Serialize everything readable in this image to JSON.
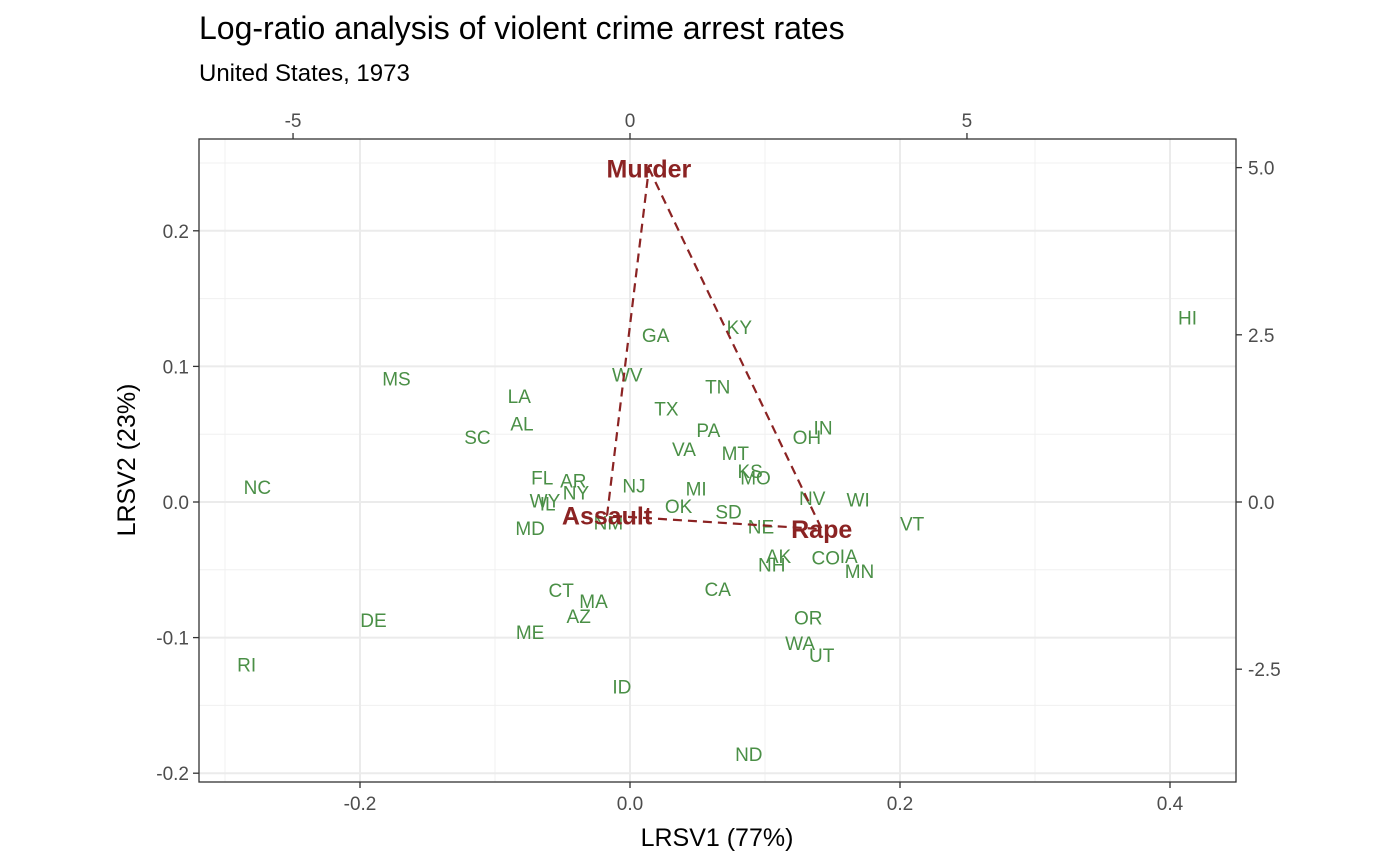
{
  "chart_data": {
    "type": "scatter",
    "title": "Log-ratio analysis of violent crime arrest rates",
    "subtitle": "United States, 1973",
    "xlabel": "LRSV1 (77%)",
    "ylabel": "LRSV2 (23%)",
    "xlim": [
      -0.3,
      0.45
    ],
    "ylim": [
      -0.21,
      0.27
    ],
    "x_ticks": [
      {
        "value": -0.2,
        "label": "-0.2"
      },
      {
        "value": 0.0,
        "label": "0.0"
      },
      {
        "value": 0.2,
        "label": "0.2"
      },
      {
        "value": 0.4,
        "label": "0.4"
      }
    ],
    "y_ticks": [
      {
        "value": -0.2,
        "label": "-0.2"
      },
      {
        "value": -0.1,
        "label": "-0.1"
      },
      {
        "value": 0.0,
        "label": "0.0"
      },
      {
        "value": 0.1,
        "label": "0.1"
      },
      {
        "value": 0.2,
        "label": "0.2"
      }
    ],
    "secondary_x_ticks": [
      {
        "value": -0.2496,
        "label": "-5"
      },
      {
        "value": 0.0,
        "label": "0"
      },
      {
        "value": 0.2496,
        "label": "5"
      }
    ],
    "secondary_y_ticks": [
      {
        "value": 0.2466,
        "label": "5.0"
      },
      {
        "value": 0.1233,
        "label": "2.5"
      },
      {
        "value": 0.0,
        "label": "0.0"
      },
      {
        "value": -0.1233,
        "label": "-2.5"
      }
    ],
    "grid": true,
    "point_color": "#4a8f46",
    "variable_color": "#8b2323",
    "observations": [
      {
        "label": "HI",
        "x": 0.413,
        "y": 0.136
      },
      {
        "label": "NC",
        "x": -0.276,
        "y": 0.011
      },
      {
        "label": "RI",
        "x": -0.284,
        "y": -0.12
      },
      {
        "label": "DE",
        "x": -0.19,
        "y": -0.087
      },
      {
        "label": "MS",
        "x": -0.173,
        "y": 0.091
      },
      {
        "label": "SC",
        "x": -0.113,
        "y": 0.048
      },
      {
        "label": "LA",
        "x": -0.082,
        "y": 0.078
      },
      {
        "label": "AL",
        "x": -0.08,
        "y": 0.058
      },
      {
        "label": "FL",
        "x": -0.065,
        "y": 0.018
      },
      {
        "label": "AR",
        "x": -0.042,
        "y": 0.016
      },
      {
        "label": "WY",
        "x": -0.063,
        "y": 0.001
      },
      {
        "label": "IL",
        "x": -0.061,
        "y": -0.001
      },
      {
        "label": "NY",
        "x": -0.04,
        "y": 0.007
      },
      {
        "label": "MD",
        "x": -0.074,
        "y": -0.019
      },
      {
        "label": "CT",
        "x": -0.051,
        "y": -0.065
      },
      {
        "label": "MA",
        "x": -0.027,
        "y": -0.073
      },
      {
        "label": "AZ",
        "x": -0.038,
        "y": -0.084
      },
      {
        "label": "ME",
        "x": -0.074,
        "y": -0.096
      },
      {
        "label": "ID",
        "x": -0.006,
        "y": -0.136
      },
      {
        "label": "NM",
        "x": -0.016,
        "y": -0.015
      },
      {
        "label": "NJ",
        "x": 0.003,
        "y": 0.012
      },
      {
        "label": "GA",
        "x": 0.019,
        "y": 0.123
      },
      {
        "label": "WV",
        "x": -0.002,
        "y": 0.094
      },
      {
        "label": "TX",
        "x": 0.027,
        "y": 0.069
      },
      {
        "label": "VA",
        "x": 0.04,
        "y": 0.039
      },
      {
        "label": "MI",
        "x": 0.049,
        "y": 0.01
      },
      {
        "label": "OK",
        "x": 0.036,
        "y": -0.003
      },
      {
        "label": "TN",
        "x": 0.065,
        "y": 0.085
      },
      {
        "label": "KY",
        "x": 0.081,
        "y": 0.129
      },
      {
        "label": "PA",
        "x": 0.058,
        "y": 0.053
      },
      {
        "label": "MT",
        "x": 0.078,
        "y": 0.036
      },
      {
        "label": "KS",
        "x": 0.089,
        "y": 0.023
      },
      {
        "label": "MO",
        "x": 0.093,
        "y": 0.018
      },
      {
        "label": "SD",
        "x": 0.073,
        "y": -0.007
      },
      {
        "label": "NE",
        "x": 0.097,
        "y": -0.018
      },
      {
        "label": "CA",
        "x": 0.065,
        "y": -0.064
      },
      {
        "label": "ND",
        "x": 0.088,
        "y": -0.186
      },
      {
        "label": "AK",
        "x": 0.11,
        "y": -0.04
      },
      {
        "label": "NH",
        "x": 0.105,
        "y": -0.046
      },
      {
        "label": "OH",
        "x": 0.131,
        "y": 0.048
      },
      {
        "label": "IN",
        "x": 0.143,
        "y": 0.055
      },
      {
        "label": "NV",
        "x": 0.135,
        "y": 0.003
      },
      {
        "label": "WI",
        "x": 0.169,
        "y": 0.002
      },
      {
        "label": "VT",
        "x": 0.209,
        "y": -0.016
      },
      {
        "label": "CO",
        "x": 0.145,
        "y": -0.041
      },
      {
        "label": "IA",
        "x": 0.162,
        "y": -0.04
      },
      {
        "label": "MN",
        "x": 0.17,
        "y": -0.051
      },
      {
        "label": "OR",
        "x": 0.132,
        "y": -0.085
      },
      {
        "label": "WA",
        "x": 0.126,
        "y": -0.104
      },
      {
        "label": "UT",
        "x": 0.142,
        "y": -0.113
      }
    ],
    "variables": [
      {
        "label": "Murder",
        "x": 0.014,
        "y": 0.246
      },
      {
        "label": "Assault",
        "x": -0.017,
        "y": -0.01
      },
      {
        "label": "Rape",
        "x": 0.142,
        "y": -0.02
      }
    ],
    "polygon_order": [
      "Murder",
      "Rape",
      "Assault"
    ]
  }
}
